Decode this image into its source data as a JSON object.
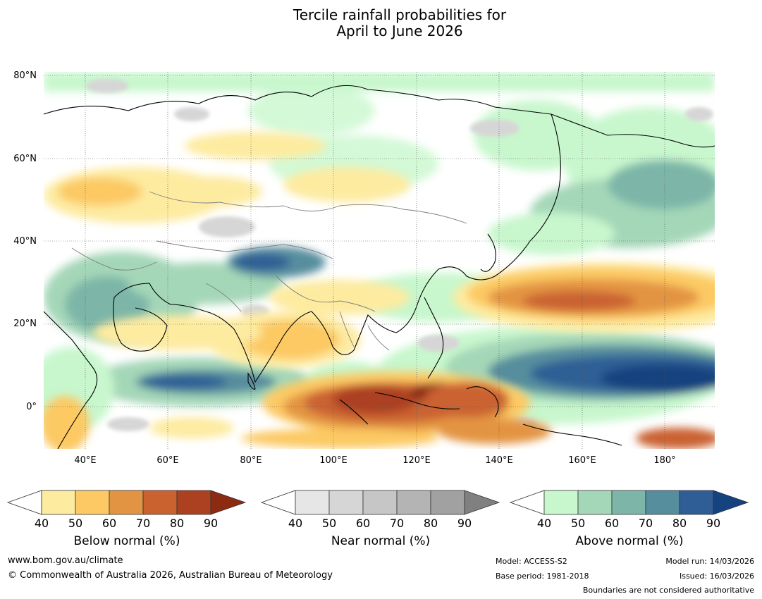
{
  "title": {
    "line1": "Tercile rainfall probabilities for",
    "line2": "April to June 2026"
  },
  "map": {
    "lat_labels": [
      "80°N",
      "60°N",
      "40°N",
      "20°N",
      "0°"
    ],
    "lon_labels": [
      "40°E",
      "60°E",
      "80°E",
      "100°E",
      "120°E",
      "140°E",
      "160°E",
      "180°"
    ],
    "extent": {
      "lon_min": 30,
      "lon_max": 192,
      "lat_min": -10,
      "lat_max": 81
    }
  },
  "legends": {
    "below": {
      "title": "Below normal (%)",
      "ticks": [
        "40",
        "50",
        "60",
        "70",
        "80",
        "90"
      ],
      "colors": [
        "#ffffff",
        "#fdeba0",
        "#fcc964",
        "#e39443",
        "#ca6230",
        "#ab4121",
        "#8c2a12"
      ]
    },
    "near": {
      "title": "Near normal (%)",
      "ticks": [
        "40",
        "50",
        "60",
        "70",
        "80",
        "90"
      ],
      "colors": [
        "#ffffff",
        "#e6e6e6",
        "#d6d6d6",
        "#c6c6c6",
        "#b4b4b4",
        "#a1a1a1",
        "#808080"
      ]
    },
    "above": {
      "title": "Above normal (%)",
      "ticks": [
        "40",
        "50",
        "60",
        "70",
        "80",
        "90"
      ],
      "colors": [
        "#ffffff",
        "#c8f7cd",
        "#a4d7b8",
        "#7db6a8",
        "#568e9e",
        "#2e5e95",
        "#15437f"
      ]
    }
  },
  "footer": {
    "url": "www.bom.gov.au/climate",
    "copyright": "© Commonwealth of Australia 2026, Australian Bureau of Meteorology",
    "model": "Model: ACCESS-S2",
    "base_period": "Base period: 1981-2018",
    "model_run": "Model run: 14/03/2026",
    "issued": "Issued: 16/03/2026",
    "disclaimer": "Boundaries are not considered authoritative"
  }
}
